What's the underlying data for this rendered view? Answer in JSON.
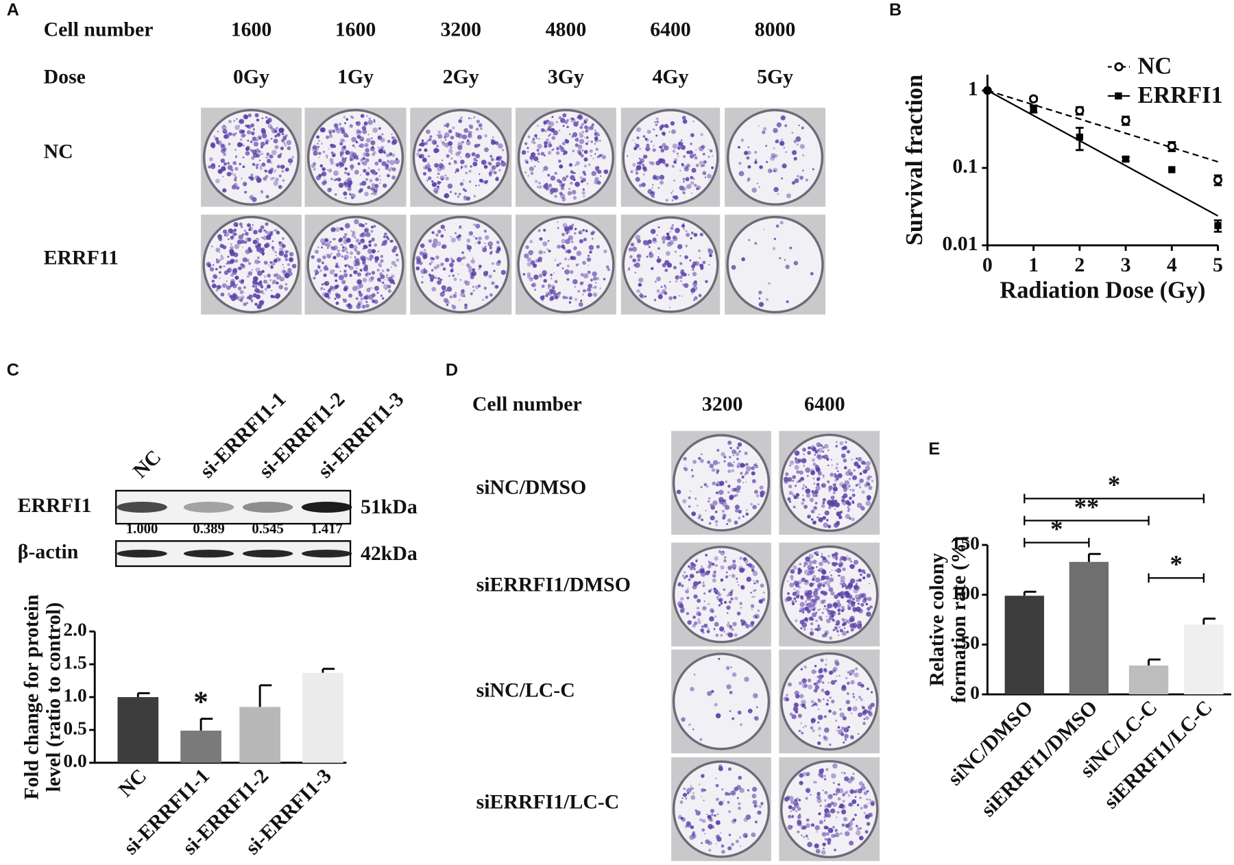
{
  "panel_a": {
    "label": "A",
    "cell_number_label": "Cell number",
    "dose_label": "Dose",
    "cell_numbers": [
      "1600",
      "1600",
      "3200",
      "4800",
      "6400",
      "8000"
    ],
    "doses": [
      "0Gy",
      "1Gy",
      "2Gy",
      "3Gy",
      "4Gy",
      "5Gy"
    ],
    "rows": [
      "NC",
      "ERRF11"
    ]
  },
  "panel_c_blot": {
    "label": "C",
    "lanes": [
      "NC",
      "si-ERRFI1-1",
      "si-ERRFI1-2",
      "si-ERRFI1-3"
    ],
    "bands": [
      "ERRFI1",
      "β-actin"
    ],
    "sizes": [
      "51kDa",
      "42kDa"
    ],
    "quantification": [
      "1.000",
      "0.389",
      "0.545",
      "1.417"
    ]
  },
  "panel_d": {
    "label": "D",
    "cell_number_label": "Cell number",
    "cell_numbers": [
      "3200",
      "6400"
    ],
    "rows": [
      "siNC/DMSO",
      "siERRFI1/DMSO",
      "siNC/LC-C",
      "siERRFI1/LC-C"
    ]
  },
  "chart_data": [
    {
      "type": "line",
      "panel_label": "B",
      "xlabel": "Radiation Dose (Gy)",
      "ylabel": "Survival fraction",
      "x": [
        0,
        1,
        2,
        3,
        4,
        5
      ],
      "xlim": [
        0,
        5
      ],
      "xticks": [
        0,
        1,
        2,
        3,
        4,
        5
      ],
      "ylim": [
        0.01,
        1.6
      ],
      "yticks": [
        0.01,
        0.1,
        1
      ],
      "log_y": true,
      "legend": "top-right",
      "series": [
        {
          "name": "NC",
          "color": "#000000",
          "marker": "open-circle",
          "line": "dashed",
          "values": [
            1,
            0.78,
            0.55,
            0.41,
            0.19,
            0.07
          ],
          "errors": [
            0,
            0.05,
            0.06,
            0.05,
            0.025,
            0.01
          ],
          "fit_x": [
            0,
            5
          ],
          "fit": [
            1,
            0.12
          ]
        },
        {
          "name": "ERRFI1",
          "color": "#000000",
          "marker": "square",
          "line": "solid",
          "values": [
            1,
            0.58,
            0.25,
            0.13,
            0.095,
            0.018
          ],
          "errors": [
            0,
            0.06,
            0.08,
            0.008,
            0,
            0.003
          ],
          "fit_x": [
            0,
            5
          ],
          "fit": [
            1,
            0.024
          ]
        }
      ]
    },
    {
      "type": "bar",
      "ylabel": [
        "Fold change for protein",
        "level (ratio to control)"
      ],
      "categories": [
        "NC",
        "si-ERRFI1-1",
        "si-ERRFI1-2",
        "si-ERRFI1-3"
      ],
      "values": [
        1.0,
        0.49,
        0.85,
        1.37
      ],
      "errors": [
        0.06,
        0.18,
        0.33,
        0.06
      ],
      "colors": [
        "#3d3d3d",
        "#7a7a7a",
        "#b8b8b8",
        "#ececec"
      ],
      "ylim": [
        0,
        2.0
      ],
      "yticks": [
        {
          "value": 0,
          "label": "0.0"
        },
        {
          "value": 0.5,
          "label": "0.5"
        },
        {
          "value": 1,
          "label": "1.0"
        },
        {
          "value": 1.5,
          "label": "1.5"
        },
        {
          "value": 2,
          "label": "2.0"
        }
      ],
      "annotations": [
        {
          "text": "*",
          "index": 1
        }
      ]
    },
    {
      "type": "bar",
      "panel_label": "E",
      "ylabel": [
        "Relative colony",
        "formation rate (%)"
      ],
      "categories": [
        "siNC/DMSO",
        "siERRFI1/DMSO",
        "siNC/LC-C",
        "siERRFI1/LC-C"
      ],
      "values": [
        99,
        133,
        29,
        70
      ],
      "errors": [
        4,
        8,
        6,
        6
      ],
      "colors": [
        "#3d3d3d",
        "#6f6f6f",
        "#bdbdbd",
        "#efefef"
      ],
      "ylim": [
        0,
        150
      ],
      "yticks": [
        0,
        50,
        100,
        150
      ],
      "significance": [
        {
          "text": "*",
          "from": 0,
          "to": 1
        },
        {
          "text": "**",
          "from": 0,
          "to": 2
        },
        {
          "text": "*",
          "from": 0,
          "to": 3
        },
        {
          "text": "*",
          "from": 2,
          "to": 3
        }
      ]
    }
  ]
}
